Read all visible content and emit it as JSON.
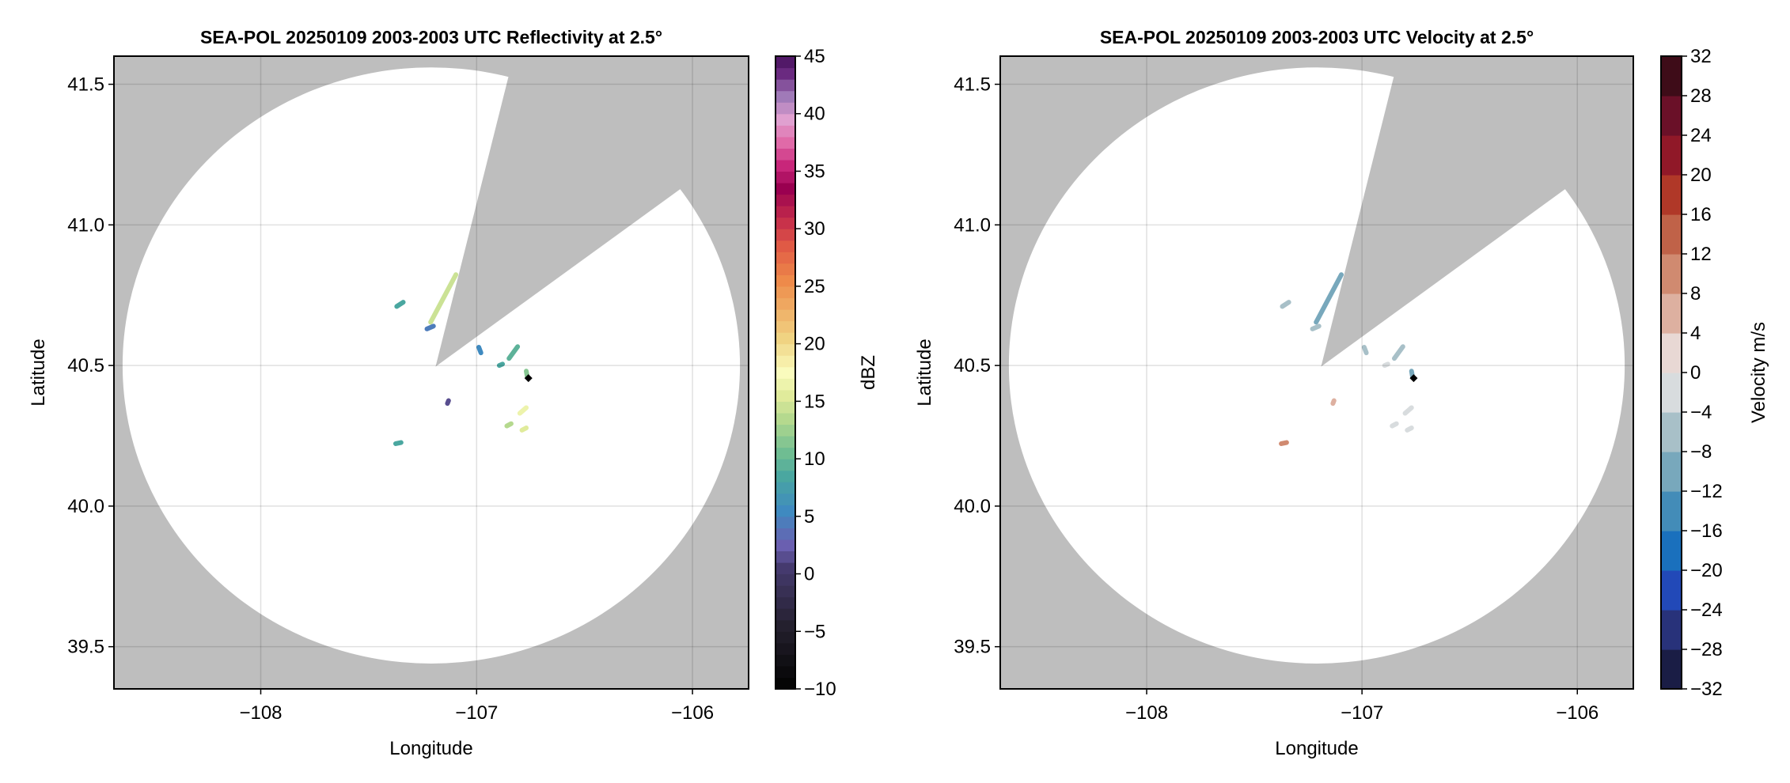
{
  "chart_data": [
    {
      "type": "heatmap",
      "title": "SEA-POL 20250109 2003-2003 UTC Reflectivity at 2.5°",
      "xlabel": "Longitude",
      "ylabel": "Latitude",
      "xlim": [
        -108.68,
        -105.74
      ],
      "ylim": [
        39.35,
        41.6
      ],
      "xticks": [
        "−108",
        "−107",
        "−106"
      ],
      "xtick_values": [
        -108,
        -107,
        -106
      ],
      "yticks": [
        "39.5",
        "40.0",
        "40.5",
        "41.0",
        "41.5"
      ],
      "ytick_values": [
        39.5,
        40.0,
        40.5,
        41.0,
        41.5
      ],
      "grid": true,
      "background_color": "#bebebe",
      "radar_center": [
        -107.21,
        40.5
      ],
      "radar_range_deg": [
        1.43,
        1.06
      ],
      "blocked_sector_edges": [
        [
          -106.853,
          41.525
        ],
        [
          -106.066,
          41.122
        ]
      ],
      "sector_apex": [
        -107.19,
        40.496
      ],
      "marker": {
        "lon": -106.76,
        "lat": 40.455,
        "shape": "diamond",
        "color": "#000000"
      },
      "colorbar": {
        "label": "dBZ",
        "range": [
          -10,
          45
        ],
        "step": 1,
        "ticks": [
          "−10",
          "−5",
          "0",
          "5",
          "10",
          "15",
          "20",
          "25",
          "30",
          "35",
          "40",
          "45"
        ],
        "tick_values": [
          -10,
          -5,
          0,
          5,
          10,
          15,
          20,
          25,
          30,
          35,
          40,
          45
        ],
        "color_stops": [
          [
            -10,
            "#050505"
          ],
          [
            -5,
            "#24202e"
          ],
          [
            0,
            "#453a6e"
          ],
          [
            2,
            "#6a5fb0"
          ],
          [
            5,
            "#3f8ac0"
          ],
          [
            8,
            "#4aa7a0"
          ],
          [
            10,
            "#6fbd92"
          ],
          [
            13,
            "#b5d98e"
          ],
          [
            15,
            "#e0eb9b"
          ],
          [
            17,
            "#fafbbd"
          ],
          [
            20,
            "#f0d382"
          ],
          [
            25,
            "#ee8a4a"
          ],
          [
            28,
            "#e05a45"
          ],
          [
            30,
            "#c8324a"
          ],
          [
            33,
            "#9a0050"
          ],
          [
            35,
            "#c8267a"
          ],
          [
            37,
            "#e06aa8"
          ],
          [
            39,
            "#e0a0d0"
          ],
          [
            41,
            "#a07ab8"
          ],
          [
            43,
            "#6a2a80"
          ],
          [
            45,
            "#3a0850"
          ]
        ]
      },
      "echoes": [
        {
          "from": [
            -107.096,
            40.823
          ],
          "to": [
            -107.213,
            40.654
          ],
          "value": 14
        },
        {
          "from": [
            -107.37,
            40.71
          ],
          "to": [
            -107.34,
            40.725
          ],
          "value": 8
        },
        {
          "from": [
            -107.23,
            40.63
          ],
          "to": [
            -107.2,
            40.64
          ],
          "value": 4
        },
        {
          "from": [
            -106.99,
            40.565
          ],
          "to": [
            -106.98,
            40.545
          ],
          "value": 5
        },
        {
          "from": [
            -106.81,
            40.567
          ],
          "to": [
            -106.85,
            40.525
          ],
          "value": 9
        },
        {
          "from": [
            -106.895,
            40.5
          ],
          "to": [
            -106.88,
            40.505
          ],
          "value": 8
        },
        {
          "from": [
            -106.77,
            40.48
          ],
          "to": [
            -106.765,
            40.458
          ],
          "value": 11
        },
        {
          "from": [
            -107.13,
            40.375
          ],
          "to": [
            -107.135,
            40.365
          ],
          "value": 1
        },
        {
          "from": [
            -106.8,
            40.33
          ],
          "to": [
            -106.77,
            40.35
          ],
          "value": 16
        },
        {
          "from": [
            -106.79,
            40.27
          ],
          "to": [
            -106.77,
            40.278
          ],
          "value": 15
        },
        {
          "from": [
            -106.86,
            40.285
          ],
          "to": [
            -106.84,
            40.293
          ],
          "value": 13
        },
        {
          "from": [
            -107.375,
            40.222
          ],
          "to": [
            -107.35,
            40.226
          ],
          "value": 8
        }
      ]
    },
    {
      "type": "heatmap",
      "title": "SEA-POL 20250109 2003-2003 UTC Velocity at 2.5°",
      "xlabel": "Longitude",
      "ylabel": "Latitude",
      "xlim": [
        -108.68,
        -105.74
      ],
      "ylim": [
        39.35,
        41.6
      ],
      "xticks": [
        "−108",
        "−107",
        "−106"
      ],
      "xtick_values": [
        -108,
        -107,
        -106
      ],
      "yticks": [
        "39.5",
        "40.0",
        "40.5",
        "41.0",
        "41.5"
      ],
      "ytick_values": [
        39.5,
        40.0,
        40.5,
        41.0,
        41.5
      ],
      "grid": true,
      "background_color": "#bebebe",
      "radar_center": [
        -107.21,
        40.5
      ],
      "radar_range_deg": [
        1.43,
        1.06
      ],
      "blocked_sector_edges": [
        [
          -106.853,
          41.525
        ],
        [
          -106.066,
          41.122
        ]
      ],
      "sector_apex": [
        -107.19,
        40.496
      ],
      "marker": {
        "lon": -106.76,
        "lat": 40.455,
        "shape": "diamond",
        "color": "#000000"
      },
      "colorbar": {
        "label": "Velocity m/s",
        "range": [
          -32,
          32
        ],
        "step": 4,
        "ticks": [
          "−32",
          "−28",
          "−24",
          "−20",
          "−16",
          "−12",
          "−8",
          "−4",
          "0",
          "4",
          "8",
          "12",
          "16",
          "20",
          "24",
          "28",
          "32"
        ],
        "tick_values": [
          -32,
          -28,
          -24,
          -20,
          -16,
          -12,
          -8,
          -4,
          0,
          4,
          8,
          12,
          16,
          20,
          24,
          28,
          32
        ],
        "bin_colors": [
          "#1a1d45",
          "#28327a",
          "#2249b8",
          "#1a70bd",
          "#438cb8",
          "#78a8bc",
          "#a8c0c8",
          "#d8dcde",
          "#e8d8d4",
          "#ddb0a0",
          "#d08a70",
          "#c06248",
          "#b03828",
          "#901828",
          "#6a1028",
          "#3e0c18"
        ]
      },
      "echoes": [
        {
          "from": [
            -107.096,
            40.823
          ],
          "to": [
            -107.213,
            40.654
          ],
          "value": -10
        },
        {
          "from": [
            -107.37,
            40.71
          ],
          "to": [
            -107.34,
            40.725
          ],
          "value": -6
        },
        {
          "from": [
            -107.23,
            40.63
          ],
          "to": [
            -107.2,
            40.64
          ],
          "value": -8
        },
        {
          "from": [
            -106.99,
            40.565
          ],
          "to": [
            -106.98,
            40.545
          ],
          "value": -6
        },
        {
          "from": [
            -106.81,
            40.567
          ],
          "to": [
            -106.85,
            40.525
          ],
          "value": -6
        },
        {
          "from": [
            -106.895,
            40.5
          ],
          "to": [
            -106.88,
            40.505
          ],
          "value": -2
        },
        {
          "from": [
            -106.77,
            40.48
          ],
          "to": [
            -106.765,
            40.458
          ],
          "value": -10
        },
        {
          "from": [
            -107.13,
            40.375
          ],
          "to": [
            -107.135,
            40.365
          ],
          "value": 6
        },
        {
          "from": [
            -106.8,
            40.33
          ],
          "to": [
            -106.77,
            40.35
          ],
          "value": -2
        },
        {
          "from": [
            -106.79,
            40.27
          ],
          "to": [
            -106.77,
            40.278
          ],
          "value": -2
        },
        {
          "from": [
            -106.86,
            40.285
          ],
          "to": [
            -106.84,
            40.293
          ],
          "value": -2
        },
        {
          "from": [
            -107.375,
            40.222
          ],
          "to": [
            -107.35,
            40.226
          ],
          "value": 8
        }
      ]
    }
  ]
}
